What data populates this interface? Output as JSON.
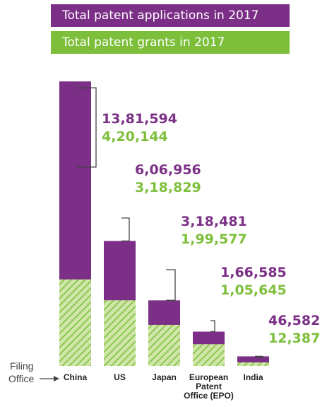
{
  "colors": {
    "applications": "#7b2f86",
    "grants": "#7dbf3b",
    "grants_fill": "#cfe6a8",
    "grants_hatch": "#7dbf3b",
    "connector": "#444444"
  },
  "legend": {
    "applications_label": "Total patent applications in 2017",
    "grants_label": "Total patent grants in 2017"
  },
  "axis": {
    "label_line1": "Filing",
    "label_line2": "Office"
  },
  "chart_data": {
    "type": "bar",
    "categories": [
      "China",
      "US",
      "Japan",
      "European Patent Office (EPO)",
      "India"
    ],
    "category_lines": [
      [
        "China"
      ],
      [
        "US"
      ],
      [
        "Japan"
      ],
      [
        "European",
        "Patent",
        "Office (EPO)"
      ],
      [
        "India"
      ]
    ],
    "series": [
      {
        "name": "Total patent applications in 2017",
        "values": [
          1381594,
          606956,
          318481,
          166585,
          46582
        ],
        "labels": [
          "13,81,594",
          "6,06,956",
          "3,18,481",
          "1,66,585",
          "46,582"
        ]
      },
      {
        "name": "Total patent grants in 2017",
        "values": [
          420144,
          318829,
          199577,
          105645,
          12387
        ],
        "labels": [
          "4,20,144",
          "3,18,829",
          "1,99,577",
          "1,05,645",
          "12,387"
        ]
      }
    ],
    "xlabel": "Filing Office",
    "ylabel": "",
    "grid": false,
    "legend_position": "top"
  }
}
